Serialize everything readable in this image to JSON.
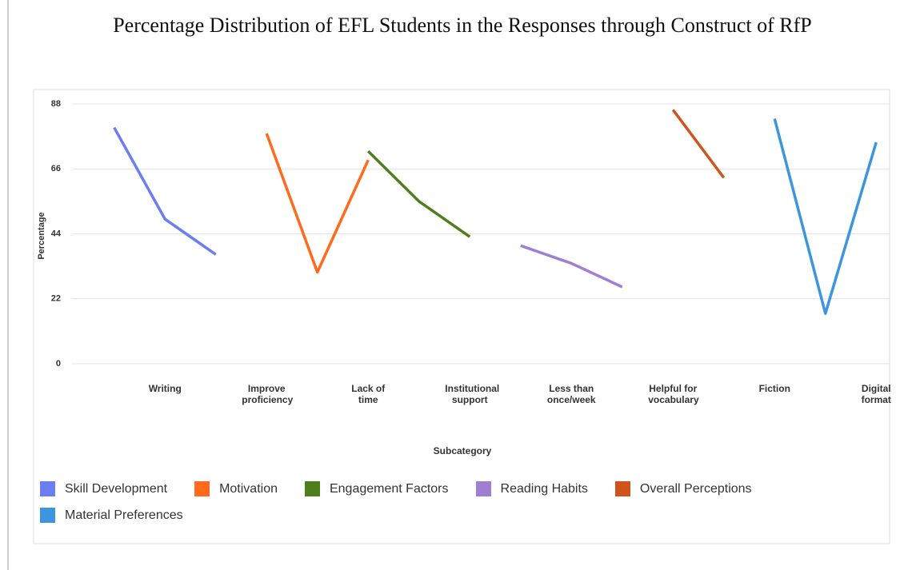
{
  "chart_data": {
    "type": "line",
    "title": "Percentage Distribution of EFL Students in the Responses through Construct of RfP",
    "xlabel": "Subcategory",
    "ylabel": "Percentage",
    "categories": [
      null,
      "Writing",
      null,
      "Improve proficiency",
      null,
      "Lack of time",
      null,
      "Institutional support",
      null,
      "Less than once/week",
      null,
      "Helpful for vocabulary",
      null,
      "Fiction",
      null,
      "Digital format"
    ],
    "series": [
      {
        "name": "Skill Development",
        "color": "#6b7ef0",
        "values": [
          80,
          49,
          37,
          null,
          null,
          null,
          null,
          null,
          null,
          null,
          null,
          null,
          null,
          null,
          null,
          null
        ]
      },
      {
        "name": "Motivation",
        "color": "#ff6a1c",
        "values": [
          null,
          null,
          null,
          78,
          31,
          69,
          null,
          null,
          null,
          null,
          null,
          null,
          null,
          null,
          null,
          null
        ]
      },
      {
        "name": "Engagement Factors",
        "color": "#4f7f1c",
        "values": [
          null,
          null,
          null,
          null,
          null,
          72,
          55,
          43,
          null,
          null,
          null,
          null,
          null,
          null,
          null,
          null
        ]
      },
      {
        "name": "Reading Habits",
        "color": "#a07fd2",
        "values": [
          null,
          null,
          null,
          null,
          null,
          null,
          null,
          null,
          40,
          34,
          26,
          null,
          null,
          null,
          null,
          null
        ]
      },
      {
        "name": "Overall Perceptions",
        "color": "#d0521c",
        "values": [
          null,
          null,
          null,
          null,
          null,
          null,
          null,
          null,
          null,
          null,
          null,
          86,
          63,
          null,
          null,
          null
        ]
      },
      {
        "name": "Material Preferences",
        "color": "#3c96de",
        "values": [
          null,
          null,
          null,
          null,
          null,
          null,
          null,
          null,
          null,
          null,
          null,
          null,
          null,
          83,
          17,
          75
        ]
      }
    ],
    "ylim": [
      0,
      88
    ],
    "yticks": [
      0,
      22,
      44,
      66,
      88
    ],
    "grid": true,
    "legend": "bottom"
  }
}
